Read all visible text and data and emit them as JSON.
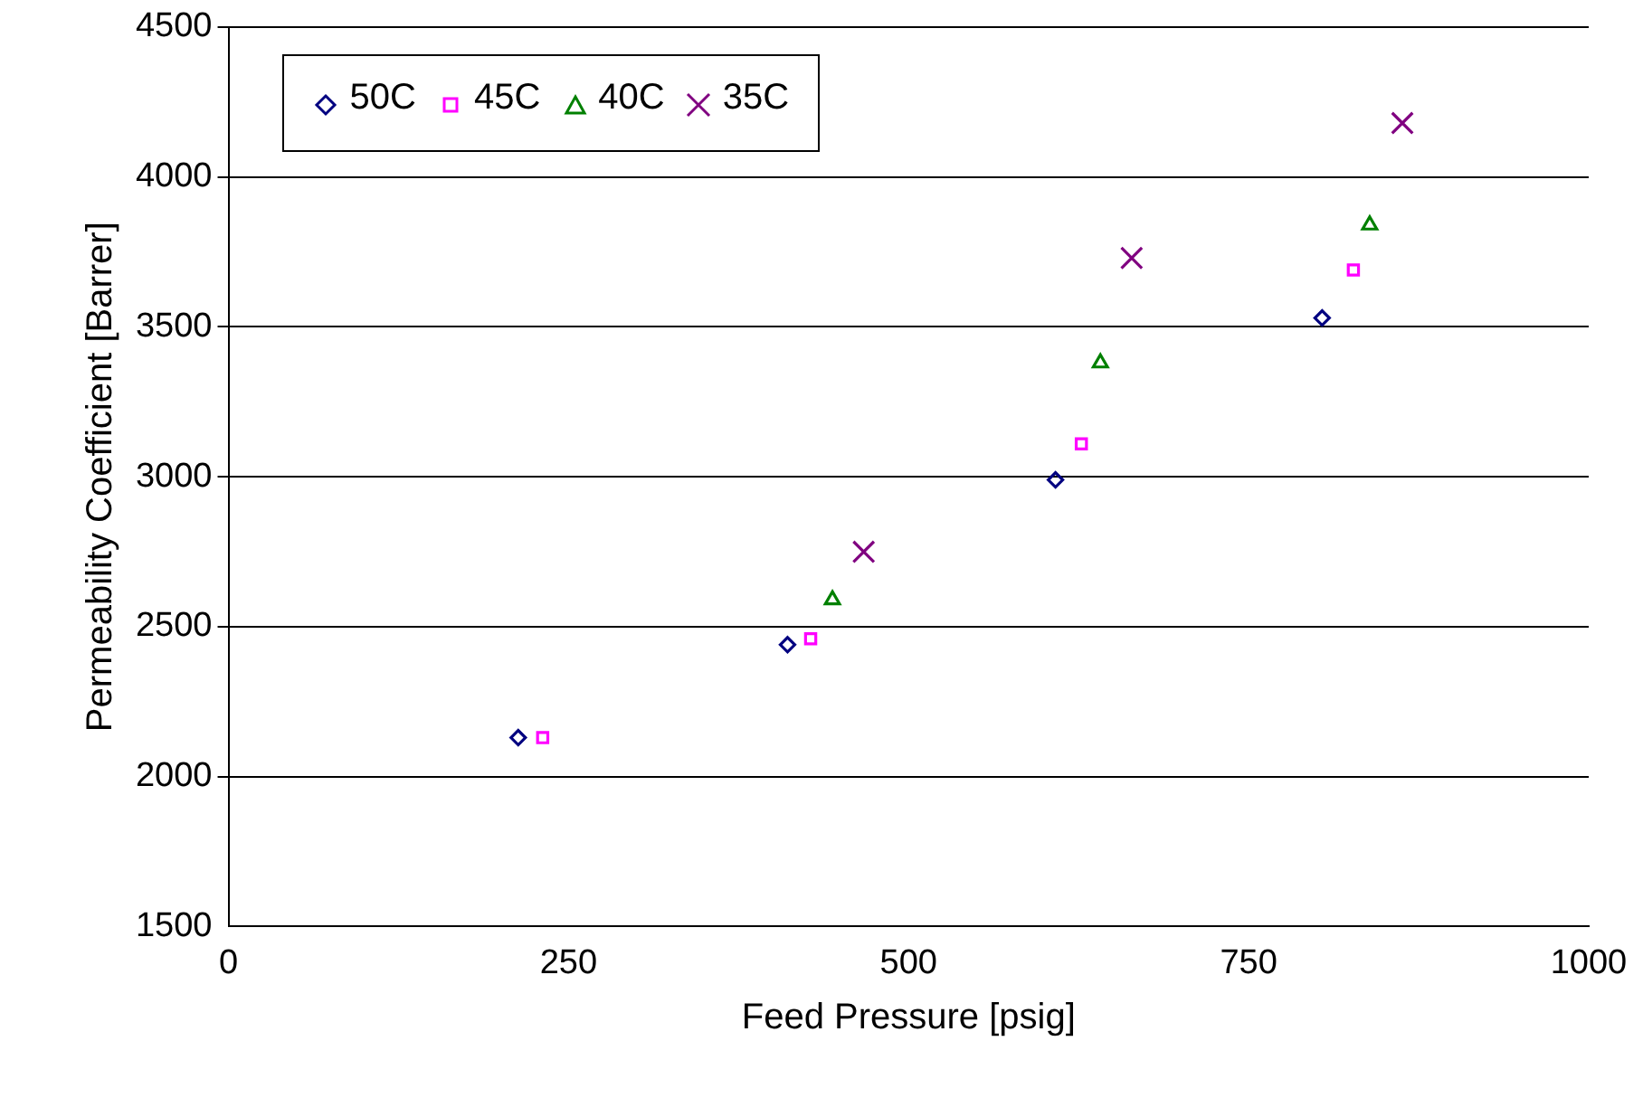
{
  "chart_data": {
    "type": "scatter",
    "xlabel": "Feed Pressure [psig]",
    "ylabel": "Permeability Coefficient [Barrer]",
    "xlim": [
      0,
      1000
    ],
    "xticks": [
      0,
      250,
      500,
      750,
      1000
    ],
    "ylim": [
      1500,
      4500
    ],
    "yticks": [
      1500,
      2000,
      2500,
      3000,
      3500,
      4000,
      4500
    ],
    "grid": "y",
    "legend": "top left",
    "series": [
      {
        "name": "50C",
        "color": "#000080",
        "marker": "diamond",
        "x": [
          213,
          411,
          608,
          804
        ],
        "values": [
          2130,
          2440,
          2990,
          3530
        ]
      },
      {
        "name": "45C",
        "color": "#ff00ff",
        "marker": "square",
        "x": [
          231,
          428,
          627,
          827
        ],
        "values": [
          2130,
          2460,
          3110,
          3690
        ]
      },
      {
        "name": "40C",
        "color": "#008000",
        "marker": "triangle",
        "x": [
          444,
          641,
          839
        ],
        "values": [
          2590,
          3380,
          3840
        ]
      },
      {
        "name": "35C",
        "color": "#800080",
        "marker": "cross",
        "x": [
          467,
          664,
          863
        ],
        "values": [
          2750,
          3730,
          4180
        ]
      }
    ]
  }
}
